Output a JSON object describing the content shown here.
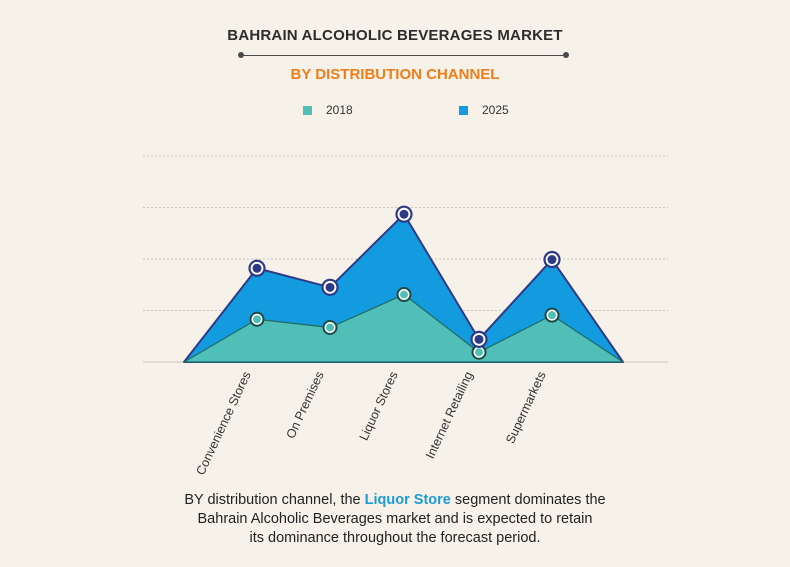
{
  "header": {
    "title": "BAHRAIN ALCOHOLIC BEVERAGES MARKET",
    "subtitle": "BY DISTRIBUTION CHANNEL"
  },
  "legend": [
    {
      "label": "2018",
      "color": "#4fbfb8"
    },
    {
      "label": "2025",
      "color": "#139be0"
    }
  ],
  "chart_data": {
    "type": "area",
    "title": "BAHRAIN ALCOHOLIC BEVERAGES MARKET",
    "subtitle": "BY DISTRIBUTION CHANNEL",
    "categories": [
      "Convenience Stores",
      "On Premises",
      "Liquor Stores",
      "Internet Retailing",
      "Supermarkets"
    ],
    "series": [
      {
        "name": "2018",
        "values": [
          0.83,
          0.67,
          1.31,
          0.19,
          0.91
        ],
        "color": "#4fbfb8"
      },
      {
        "name": "2025",
        "values": [
          1.82,
          1.45,
          2.87,
          0.44,
          1.99
        ],
        "color": "#139be0"
      }
    ],
    "xlabel": "",
    "ylabel": "",
    "ylim": [
      0,
      4
    ],
    "y_tick_labels_shown": false,
    "grid": "horizontal dashed",
    "legend_position": "top-center"
  },
  "caption": {
    "before": "BY distribution channel, the ",
    "highlight": "Liquor Store",
    "after_line1": " segment dominates the",
    "line2": "Bahrain Alcoholic Beverages market and is expected to retain",
    "line3": "its dominance throughout the forecast period."
  }
}
